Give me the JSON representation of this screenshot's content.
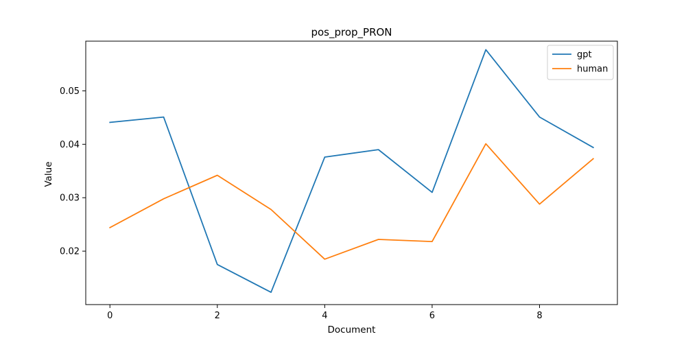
{
  "chart_data": {
    "type": "line",
    "title": "pos_prop_PRON",
    "xlabel": "Document",
    "ylabel": "Value",
    "x": [
      0,
      1,
      2,
      3,
      4,
      5,
      6,
      7,
      8,
      9
    ],
    "xlim": [
      -0.45,
      9.45
    ],
    "ylim": [
      0.01,
      0.0593
    ],
    "xticks": [
      0,
      2,
      4,
      6,
      8
    ],
    "yticks": [
      0.02,
      0.03,
      0.04,
      0.05
    ],
    "xtick_labels": [
      "0",
      "2",
      "4",
      "6",
      "8"
    ],
    "ytick_labels": [
      "0.02",
      "0.03",
      "0.04",
      "0.05"
    ],
    "grid": false,
    "legend_position": "top-right",
    "series": [
      {
        "name": "gpt",
        "color": "#1f77b4",
        "values": [
          0.0441,
          0.0451,
          0.0175,
          0.0123,
          0.0376,
          0.039,
          0.031,
          0.0577,
          0.0451,
          0.0394
        ]
      },
      {
        "name": "human",
        "color": "#ff7f0e",
        "values": [
          0.0244,
          0.0298,
          0.0342,
          0.0278,
          0.0185,
          0.0222,
          0.0218,
          0.0401,
          0.0288,
          0.0373
        ]
      }
    ]
  }
}
